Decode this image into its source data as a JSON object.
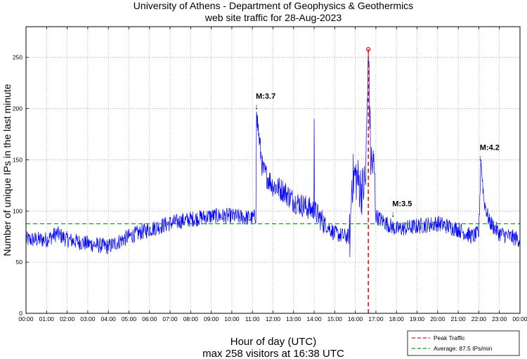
{
  "chart_data": {
    "type": "line",
    "title": "University of Athens - Department of Geophysics & Geothermics",
    "subtitle": "web site traffic for 28-Aug-2023",
    "xlabel": "Hour of day (UTC)",
    "ylabel": "Number of unique IPs in the last minute",
    "footer": "max 258 visitors at 16:38 UTC",
    "xlim_hours": [
      0,
      24
    ],
    "ylim": [
      0,
      280
    ],
    "x_ticks": [
      "00:00",
      "01:00",
      "02:00",
      "03:00",
      "04:00",
      "05:00",
      "06:00",
      "07:00",
      "08:00",
      "09:00",
      "10:00",
      "11:00",
      "12:00",
      "13:00",
      "14:00",
      "15:00",
      "16:00",
      "17:00",
      "18:00",
      "19:00",
      "20:00",
      "21:00",
      "22:00",
      "23:00",
      "00:00"
    ],
    "y_ticks": [
      0,
      50,
      100,
      150,
      200,
      250
    ],
    "grid": true,
    "series": [
      {
        "name": "visitors",
        "color": "#0000ff",
        "trend_hours": [
          0,
          1,
          1.5,
          2,
          3,
          4,
          4.5,
          5,
          6,
          7,
          8,
          9,
          10,
          11,
          11.17,
          11.2,
          11.33,
          11.5,
          12,
          12.5,
          13,
          13.5,
          14,
          14.5,
          15,
          15.5,
          15.75,
          15.83,
          16,
          16.33,
          16.5,
          16.63,
          16.75,
          16.92,
          17,
          17.5,
          18,
          19,
          20,
          21,
          21.67,
          22,
          22.1,
          22.25,
          22.5,
          23,
          24
        ],
        "trend_values": [
          72,
          72,
          78,
          72,
          68,
          65,
          70,
          75,
          82,
          88,
          92,
          95,
          95,
          93,
          95,
          197,
          170,
          140,
          125,
          120,
          110,
          105,
          100,
          88,
          78,
          75,
          75,
          130,
          135,
          120,
          130,
          258,
          150,
          140,
          95,
          88,
          82,
          85,
          88,
          82,
          75,
          78,
          150,
          110,
          90,
          78,
          72
        ],
        "spikes": [
          {
            "hour": 14.0,
            "value": 190
          }
        ]
      }
    ],
    "average": 87.5,
    "peak": {
      "time": "16:38",
      "hour": 16.633,
      "value": 258
    },
    "annotations": [
      {
        "text": "M:3.7",
        "hour": 11.2,
        "value": 200
      },
      {
        "text": "M:3.5",
        "hour": 17.83,
        "value": 95
      },
      {
        "text": "M:4.2",
        "hour": 22.08,
        "value": 150
      }
    ],
    "legend": {
      "position": "bottom-right",
      "entries": [
        {
          "label": "Peak Traffic",
          "color": "#ff0000"
        },
        {
          "label": "Average: 87.5 IPs/min",
          "color": "#00aa00"
        }
      ]
    }
  }
}
